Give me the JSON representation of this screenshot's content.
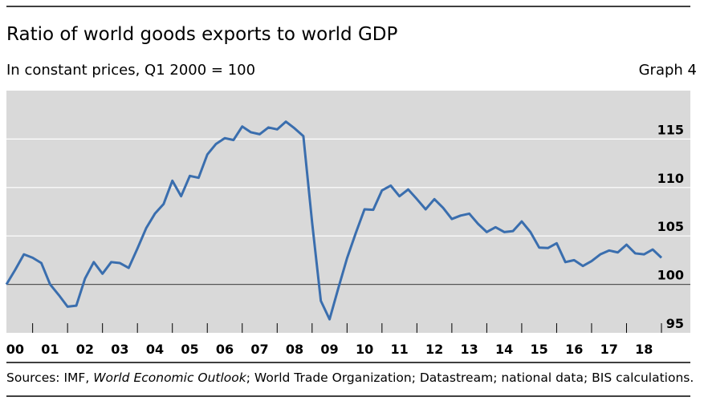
{
  "chart_data": {
    "type": "line",
    "title": "Ratio of world goods exports to world GDP",
    "subtitle": "In constant prices, Q1 2000 = 100",
    "graph_label": "Graph 4",
    "sources": [
      "Sources: IMF, ",
      "World Economic Outlook",
      "; World Trade Organization; Datastream; national data; BIS calculations."
    ],
    "categories": [
      null,
      "00",
      null,
      null,
      null,
      "01",
      null,
      null,
      null,
      "02",
      null,
      null,
      null,
      "03",
      null,
      null,
      null,
      "04",
      null,
      null,
      null,
      "05",
      null,
      null,
      null,
      "06",
      null,
      null,
      null,
      "07",
      null,
      null,
      null,
      "08",
      null,
      null,
      null,
      "09",
      null,
      null,
      null,
      "10",
      null,
      null,
      null,
      "11",
      null,
      null,
      null,
      "12",
      null,
      null,
      null,
      "13",
      null,
      null,
      null,
      "14",
      null,
      null,
      null,
      "15",
      null,
      null,
      null,
      "16",
      null,
      null,
      null,
      "17",
      null,
      null,
      null,
      "18",
      null,
      null
    ],
    "series": [
      {
        "color": "#3a6eae",
        "values": [
          100,
          101.5,
          103.1,
          102.75,
          102.2,
          100,
          98.9,
          97.7,
          97.8,
          100.6,
          102.3,
          101.1,
          102.3,
          102.2,
          101.7,
          103.7,
          105.8,
          107.3,
          108.3,
          110.7,
          109.1,
          111.2,
          111,
          113.4,
          114.5,
          115.1,
          114.9,
          116.3,
          115.7,
          115.5,
          116.2,
          116,
          116.8,
          116.1,
          115.3,
          106.4,
          98.3,
          96.4,
          99.6,
          102.7,
          105.3,
          107.75,
          107.7,
          109.7,
          110.2,
          109.1,
          109.8,
          108.8,
          107.75,
          108.8,
          107.9,
          106.75,
          107.1,
          107.3,
          106.25,
          105.4,
          105.9,
          105.4,
          105.5,
          106.5,
          105.4,
          103.8,
          103.75,
          104.25,
          102.3,
          102.5,
          101.9,
          102.4,
          103.1,
          103.5,
          103.3,
          104.1,
          103.2,
          103.1,
          103.6,
          102.75
        ]
      }
    ],
    "ylim": [
      95,
      120
    ],
    "yticks": [
      95,
      100,
      105,
      110,
      115
    ],
    "hline": 100,
    "grid": true,
    "y_axis_side": "right"
  }
}
